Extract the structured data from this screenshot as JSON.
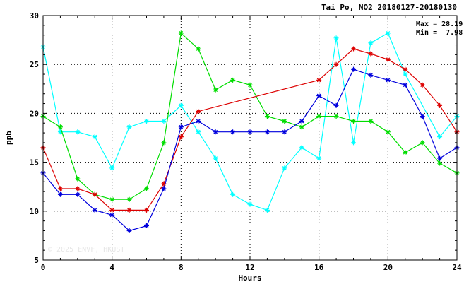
{
  "chart_data": {
    "type": "line",
    "title": "Tai Po, NO2 20180127-20180130",
    "xlabel": "Hours",
    "ylabel": "ppb",
    "xlim": [
      0,
      24
    ],
    "ylim": [
      5,
      30
    ],
    "xticks": [
      "0",
      "4",
      "8",
      "12",
      "16",
      "20",
      "24"
    ],
    "yticks": [
      "5",
      "10",
      "15",
      "20",
      "25",
      "30"
    ],
    "grid": true,
    "stats": {
      "max": "Max = 28.19",
      "min": "Min =  7.98"
    },
    "watermark": "© 2025 ENVF, HKUST",
    "x": [
      0,
      1,
      2,
      3,
      4,
      5,
      6,
      7,
      8,
      9,
      10,
      11,
      12,
      13,
      14,
      15,
      16,
      17,
      18,
      19,
      20,
      21,
      22,
      23,
      24
    ],
    "series": [
      {
        "color": "#00ffff",
        "values": [
          26.8,
          18.1,
          18.1,
          17.6,
          14.4,
          18.6,
          19.2,
          19.2,
          20.8,
          18.1,
          15.4,
          11.7,
          10.7,
          10.1,
          14.4,
          16.5,
          15.4,
          27.7,
          17.0,
          27.2,
          28.2,
          24.0,
          null,
          17.6,
          19.7
        ]
      },
      {
        "color": "#00dd00",
        "values": [
          19.7,
          18.6,
          13.3,
          11.7,
          11.2,
          11.2,
          12.3,
          17.0,
          28.2,
          26.6,
          22.4,
          23.4,
          22.9,
          19.7,
          19.2,
          18.6,
          19.7,
          19.7,
          19.2,
          19.2,
          18.1,
          16.0,
          17.0,
          14.9,
          13.9
        ]
      },
      {
        "color": "#dd0000",
        "values": [
          16.5,
          12.3,
          12.3,
          11.7,
          10.1,
          10.1,
          10.1,
          12.8,
          17.6,
          20.2,
          null,
          null,
          null,
          null,
          null,
          null,
          23.4,
          25.0,
          26.6,
          26.1,
          25.5,
          24.5,
          22.9,
          20.8,
          18.1
        ]
      },
      {
        "color": "#0000dd",
        "values": [
          13.9,
          11.7,
          11.7,
          10.1,
          9.6,
          8.0,
          8.5,
          12.3,
          18.6,
          19.2,
          18.1,
          18.1,
          18.1,
          18.1,
          18.1,
          19.2,
          21.8,
          20.8,
          24.5,
          23.9,
          23.4,
          22.9,
          19.7,
          15.4,
          16.5
        ]
      }
    ]
  }
}
